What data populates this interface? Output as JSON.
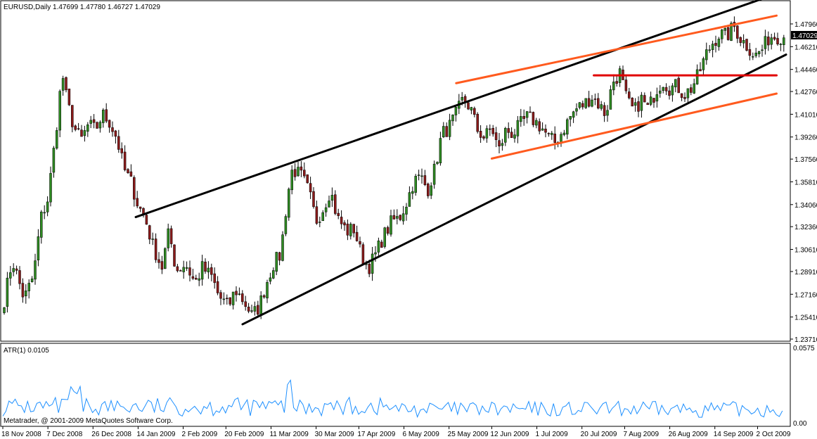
{
  "chart_data": [
    {
      "type": "candlestick",
      "title": "EURUSD,Daily  1.47699 1.47780 1.46727 1.47029",
      "symbol": "EURUSD",
      "timeframe": "Daily",
      "ohlc_header": "1.47699 1.47780 1.46727 1.47029",
      "current_price_label": "1.47029",
      "ylim": [
        1.2371,
        1.5053
      ],
      "yticks": [
        "1.47960",
        "1.46210",
        "1.44460",
        "1.42760",
        "1.41010",
        "1.39260",
        "1.37560",
        "1.35810",
        "1.34060",
        "1.32360",
        "1.30610",
        "1.28910",
        "1.27160",
        "1.25410",
        "1.23710"
      ],
      "xticks": [
        "18 Nov 2008",
        "7 Dec 2008",
        "26 Dec 2008",
        "14 Jan 2009",
        "2 Feb 2009",
        "20 Feb 2009",
        "11 Mar 2009",
        "30 Mar 2009",
        "17 Apr 2009",
        "6 May 2009",
        "25 May 2009",
        "12 Jun 2009",
        "1 Jul 2009",
        "20 Jul 2009",
        "7 Aug 2009",
        "26 Aug 2009",
        "14 Sep 2009",
        "2 Oct 2009"
      ],
      "colors": {
        "bull": "#2e8b22",
        "bear": "#8b1a1a",
        "trend_black": "#000000",
        "trend_orange": "#ff5a1e",
        "trend_red": "#e00000"
      },
      "trendlines": [
        {
          "color": "black",
          "from": [
            "2009-01-13",
            1.331
          ],
          "to": [
            "2009-10-14",
            1.5053
          ]
        },
        {
          "color": "black",
          "from": [
            "2009-02-27",
            1.2485
          ],
          "to": [
            "2009-10-14",
            1.456
          ]
        },
        {
          "color": "orange",
          "from": [
            "2009-05-28",
            1.434
          ],
          "to": [
            "2009-10-10",
            1.486
          ]
        },
        {
          "color": "orange",
          "from": [
            "2009-06-12",
            1.376
          ],
          "to": [
            "2009-10-10",
            1.426
          ]
        },
        {
          "color": "red",
          "from": [
            "2009-07-25",
            1.44
          ],
          "to": [
            "2009-10-10",
            1.44
          ]
        }
      ],
      "path": [
        [
          "2008-11-18",
          1.262
        ],
        [
          "2008-11-22",
          1.298
        ],
        [
          "2008-11-27",
          1.268
        ],
        [
          "2008-12-01",
          1.286
        ],
        [
          "2008-12-04",
          1.33
        ],
        [
          "2008-12-07",
          1.345
        ],
        [
          "2008-12-10",
          1.39
        ],
        [
          "2008-12-13",
          1.442
        ],
        [
          "2008-12-15",
          1.42
        ],
        [
          "2008-12-18",
          1.4
        ],
        [
          "2008-12-21",
          1.39
        ],
        [
          "2008-12-24",
          1.402
        ],
        [
          "2008-12-27",
          1.398
        ],
        [
          "2008-12-30",
          1.41
        ],
        [
          "2009-01-02",
          1.404
        ],
        [
          "2009-01-05",
          1.392
        ],
        [
          "2009-01-08",
          1.368
        ],
        [
          "2009-01-11",
          1.358
        ],
        [
          "2009-01-14",
          1.34
        ],
        [
          "2009-01-17",
          1.33
        ],
        [
          "2009-01-20",
          1.31
        ],
        [
          "2009-01-24",
          1.292
        ],
        [
          "2009-01-27",
          1.32
        ],
        [
          "2009-01-30",
          1.29
        ],
        [
          "2009-02-03",
          1.295
        ],
        [
          "2009-02-07",
          1.28
        ],
        [
          "2009-02-10",
          1.292
        ],
        [
          "2009-02-14",
          1.285
        ],
        [
          "2009-02-17",
          1.27
        ],
        [
          "2009-02-21",
          1.262
        ],
        [
          "2009-02-24",
          1.275
        ],
        [
          "2009-02-28",
          1.265
        ],
        [
          "2009-03-03",
          1.255
        ],
        [
          "2009-03-06",
          1.262
        ],
        [
          "2009-03-09",
          1.28
        ],
        [
          "2009-03-12",
          1.295
        ],
        [
          "2009-03-15",
          1.302
        ],
        [
          "2009-03-18",
          1.348
        ],
        [
          "2009-03-20",
          1.368
        ],
        [
          "2009-03-24",
          1.362
        ],
        [
          "2009-03-27",
          1.35
        ],
        [
          "2009-03-30",
          1.328
        ],
        [
          "2009-04-02",
          1.338
        ],
        [
          "2009-04-05",
          1.352
        ],
        [
          "2009-04-08",
          1.33
        ],
        [
          "2009-04-12",
          1.32
        ],
        [
          "2009-04-15",
          1.322
        ],
        [
          "2009-04-18",
          1.302
        ],
        [
          "2009-04-21",
          1.292
        ],
        [
          "2009-04-24",
          1.302
        ],
        [
          "2009-04-27",
          1.315
        ],
        [
          "2009-05-01",
          1.328
        ],
        [
          "2009-05-04",
          1.33
        ],
        [
          "2009-05-07",
          1.342
        ],
        [
          "2009-05-10",
          1.358
        ],
        [
          "2009-05-13",
          1.362
        ],
        [
          "2009-05-16",
          1.352
        ],
        [
          "2009-05-19",
          1.368
        ],
        [
          "2009-05-22",
          1.395
        ],
        [
          "2009-05-25",
          1.4
        ],
        [
          "2009-05-28",
          1.41
        ],
        [
          "2009-05-31",
          1.422
        ],
        [
          "2009-06-03",
          1.415
        ],
        [
          "2009-06-06",
          1.398
        ],
        [
          "2009-06-09",
          1.392
        ],
        [
          "2009-06-12",
          1.4
        ],
        [
          "2009-06-15",
          1.382
        ],
        [
          "2009-06-18",
          1.398
        ],
        [
          "2009-06-21",
          1.395
        ],
        [
          "2009-06-24",
          1.402
        ],
        [
          "2009-06-27",
          1.408
        ],
        [
          "2009-06-30",
          1.405
        ],
        [
          "2009-07-03",
          1.4
        ],
        [
          "2009-07-06",
          1.392
        ],
        [
          "2009-07-09",
          1.388
        ],
        [
          "2009-07-12",
          1.398
        ],
        [
          "2009-07-15",
          1.408
        ],
        [
          "2009-07-18",
          1.415
        ],
        [
          "2009-07-21",
          1.418
        ],
        [
          "2009-07-24",
          1.424
        ],
        [
          "2009-07-27",
          1.418
        ],
        [
          "2009-07-30",
          1.41
        ],
        [
          "2009-08-02",
          1.435
        ],
        [
          "2009-08-05",
          1.442
        ],
        [
          "2009-08-08",
          1.42
        ],
        [
          "2009-08-11",
          1.412
        ],
        [
          "2009-08-14",
          1.422
        ],
        [
          "2009-08-17",
          1.414
        ],
        [
          "2009-08-20",
          1.428
        ],
        [
          "2009-08-23",
          1.436
        ],
        [
          "2009-08-26",
          1.43
        ],
        [
          "2009-08-29",
          1.432
        ],
        [
          "2009-09-01",
          1.425
        ],
        [
          "2009-09-04",
          1.43
        ],
        [
          "2009-09-07",
          1.44
        ],
        [
          "2009-09-10",
          1.455
        ],
        [
          "2009-09-13",
          1.465
        ],
        [
          "2009-09-16",
          1.472
        ],
        [
          "2009-09-19",
          1.47
        ],
        [
          "2009-09-22",
          1.478
        ],
        [
          "2009-09-25",
          1.468
        ],
        [
          "2009-09-28",
          1.462
        ],
        [
          "2009-10-01",
          1.455
        ],
        [
          "2009-10-04",
          1.46
        ],
        [
          "2009-10-07",
          1.47
        ],
        [
          "2009-10-09",
          1.47
        ]
      ]
    },
    {
      "type": "line",
      "title": "ATR(1) 0.0105",
      "indicator": "ATR(1)",
      "current_value_label": "0.0105",
      "ylim": [
        0,
        0.0575
      ],
      "yticks": [
        "0.0575",
        "0.00"
      ],
      "color": "#1e90ff",
      "value_range": [
        0.004,
        0.035
      ]
    }
  ],
  "footer": {
    "copyright": "Metatrader, @ 2001-2009 MetaQuotes Software Corp."
  }
}
